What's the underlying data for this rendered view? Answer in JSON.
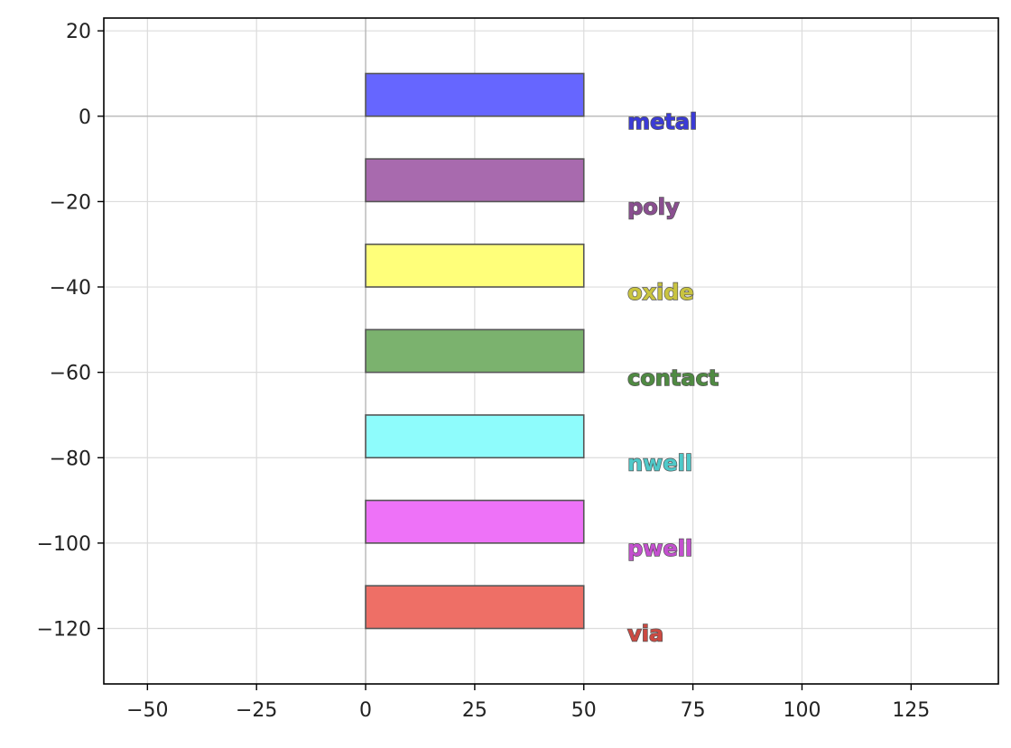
{
  "chart_data": {
    "type": "bar",
    "orientation": "horizontal",
    "xlim": [
      -60,
      145
    ],
    "ylim": [
      -133,
      23
    ],
    "xticks": [
      -50,
      -25,
      0,
      25,
      50,
      75,
      100,
      125
    ],
    "yticks": [
      20,
      0,
      -20,
      -40,
      -60,
      -80,
      -100,
      -120
    ],
    "xtick_labels": [
      "−50",
      "−25",
      "0",
      "25",
      "50",
      "75",
      "100",
      "125"
    ],
    "ytick_labels": [
      "20",
      "0",
      "−20",
      "−40",
      "−60",
      "−80",
      "−100",
      "−120"
    ],
    "grid": true,
    "title": "",
    "xlabel": "",
    "ylabel": "",
    "reference_lines": {
      "x": 0,
      "y": 0
    },
    "series": [
      {
        "name": "metal",
        "x0": 0,
        "x1": 50,
        "y0": 0,
        "y1": 10,
        "color": "#6666ff",
        "label_color": "#3b3bd6"
      },
      {
        "name": "poly",
        "x0": 0,
        "x1": 50,
        "y0": -20,
        "y1": -10,
        "color": "#a86aae",
        "label_color": "#8a4f90"
      },
      {
        "name": "oxide",
        "x0": 0,
        "x1": 50,
        "y0": -40,
        "y1": -30,
        "color": "#ffff7a",
        "label_color": "#c9c440"
      },
      {
        "name": "contact",
        "x0": 0,
        "x1": 50,
        "y0": -60,
        "y1": -50,
        "color": "#7bb26e",
        "label_color": "#4f8a42"
      },
      {
        "name": "nwell",
        "x0": 0,
        "x1": 50,
        "y0": -80,
        "y1": -70,
        "color": "#8efcfc",
        "label_color": "#4fc9c9"
      },
      {
        "name": "pwell",
        "x0": 0,
        "x1": 50,
        "y0": -100,
        "y1": -90,
        "color": "#ee72f8",
        "label_color": "#c450cf"
      },
      {
        "name": "via",
        "x0": 0,
        "x1": 50,
        "y0": -120,
        "y1": -110,
        "color": "#ee6f66",
        "label_color": "#cc4a42"
      }
    ],
    "label_x": 60,
    "label_y_offset": -3
  }
}
